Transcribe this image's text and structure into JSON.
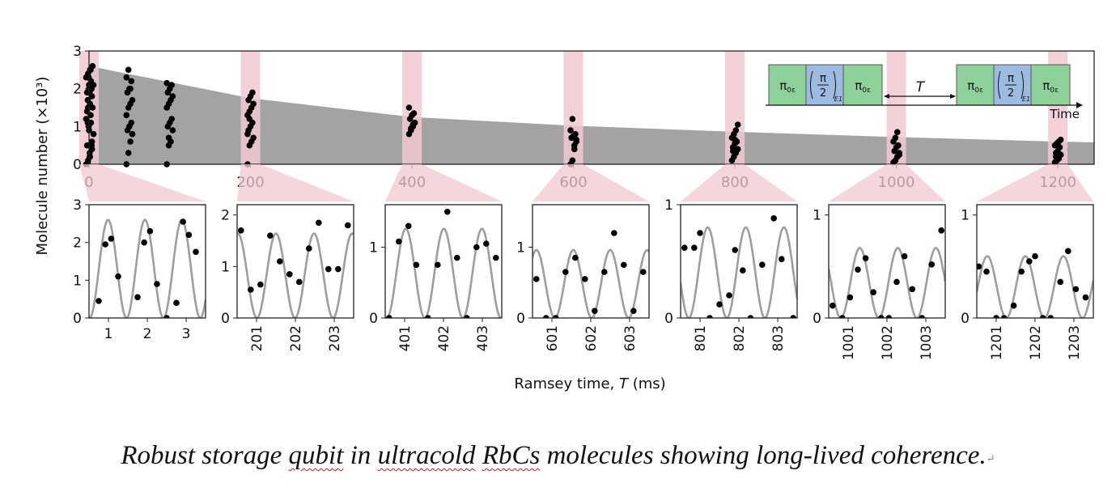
{
  "caption": {
    "parts": [
      "Robust storage ",
      "qubit",
      " in ",
      "ultracold",
      " ",
      "RbCs",
      " molecules showing long-lived coherence."
    ],
    "mark": "↵"
  },
  "colors": {
    "fill": "#a3a3a3",
    "highlight": "#f2c8d2",
    "fit_line": "#9e9e9e",
    "point": "#000000",
    "pulse_green": "#8fd19a",
    "pulse_blue": "#9dbbe0"
  },
  "chart_data": [
    {
      "type": "scatter",
      "panel": "overview",
      "ylabel": "Molecule number (×10³)",
      "xlim": [
        0,
        1245
      ],
      "ylim": [
        0,
        3
      ],
      "xticks": [
        0,
        200,
        400,
        600,
        800,
        1000,
        1200
      ],
      "yticks": [
        0,
        1,
        2,
        3
      ],
      "envelope": {
        "x": [
          0,
          200,
          400,
          600,
          800,
          1000,
          1200,
          1245
        ],
        "y": [
          2.6,
          1.75,
          1.25,
          1.02,
          0.86,
          0.72,
          0.6,
          0.58
        ]
      },
      "highlight_x": [
        0,
        200,
        400,
        600,
        800,
        1000,
        1200
      ],
      "points": [
        {
          "x": 0,
          "y": [
            0.0,
            0.1,
            0.2,
            0.4,
            0.5,
            0.9,
            1.1,
            1.2,
            1.5,
            1.6,
            1.8,
            1.9,
            2.0,
            2.2,
            2.3,
            2.4,
            2.5,
            0.6,
            1.4,
            2.1
          ]
        },
        {
          "x": 2,
          "y": [
            0.05,
            0.3,
            0.5,
            0.8,
            1.0,
            1.3,
            1.5,
            1.7,
            1.9,
            2.0,
            2.1,
            2.3,
            2.5,
            2.6,
            1.1,
            0.2
          ]
        },
        {
          "x": 50,
          "y": [
            0.0,
            0.3,
            0.6,
            0.8,
            0.9,
            1.0,
            1.1,
            1.3,
            1.5,
            1.6,
            1.7,
            1.9,
            2.0,
            2.2,
            2.3,
            2.5,
            2.0
          ]
        },
        {
          "x": 100,
          "y": [
            0.0,
            0.5,
            0.6,
            0.9,
            1.0,
            1.1,
            1.2,
            1.5,
            1.6,
            1.7,
            1.8,
            1.9,
            2.0,
            2.1,
            2.15,
            0.7
          ]
        },
        {
          "x": 200,
          "y": [
            0.0,
            0.5,
            0.6,
            0.7,
            0.9,
            1.0,
            1.1,
            1.3,
            1.4,
            1.5,
            1.6,
            1.7,
            1.8,
            1.9,
            0.8,
            1.2
          ]
        },
        {
          "x": 400,
          "y": [
            0.8,
            0.9,
            1.0,
            1.1,
            1.2,
            1.3,
            1.35,
            1.5,
            0.95,
            1.05
          ]
        },
        {
          "x": 600,
          "y": [
            0.0,
            0.1,
            0.4,
            0.6,
            0.7,
            0.75,
            0.8,
            0.9,
            1.2,
            0.5,
            0.65
          ]
        },
        {
          "x": 800,
          "y": [
            0.1,
            0.2,
            0.3,
            0.4,
            0.45,
            0.55,
            0.6,
            0.7,
            0.8,
            0.9,
            1.05,
            0.35,
            0.65
          ]
        },
        {
          "x": 1000,
          "y": [
            0.05,
            0.1,
            0.2,
            0.3,
            0.35,
            0.45,
            0.5,
            0.6,
            0.7,
            0.85,
            0.25
          ]
        },
        {
          "x": 1200,
          "y": [
            0.05,
            0.1,
            0.15,
            0.25,
            0.3,
            0.35,
            0.45,
            0.5,
            0.55,
            0.6,
            0.65,
            0.2
          ]
        }
      ],
      "inset": {
        "labels": [
          "π",
          "π",
          "2",
          "E1",
          "π",
          "T",
          "π",
          "π",
          "2",
          "E1",
          "π",
          "Time"
        ],
        "pulse_subscript": "0ε"
      }
    },
    {
      "type": "scatter",
      "panel": "zoom",
      "xlim": [
        0.5,
        3.5
      ],
      "ylim": [
        0,
        3
      ],
      "xticks": [
        1,
        2,
        3
      ],
      "yticks": [
        0,
        1,
        2,
        3
      ],
      "fit": {
        "offset": 1.3,
        "amplitude": 1.3,
        "period": 0.95,
        "peak_x": 0.99
      },
      "x": [
        0.75,
        0.92,
        1.07,
        1.25,
        1.75,
        1.92,
        2.07,
        2.25,
        2.5,
        2.75,
        2.92,
        3.07,
        3.25
      ],
      "y": [
        0.45,
        1.95,
        2.1,
        1.1,
        0.55,
        2.0,
        2.3,
        0.9,
        0.0,
        0.4,
        2.55,
        2.2,
        1.75
      ]
    },
    {
      "type": "scatter",
      "panel": "zoom",
      "xlim": [
        200.5,
        203.5
      ],
      "ylim": [
        0,
        2.2
      ],
      "xticks": [
        201,
        202,
        203
      ],
      "yticks": [
        0,
        1,
        2
      ],
      "fit": {
        "offset": 0.82,
        "amplitude": 0.82,
        "period": 0.98,
        "peak_x": 201.5
      },
      "x": [
        200.6,
        200.85,
        201.1,
        201.35,
        201.6,
        201.85,
        202.1,
        202.35,
        202.6,
        202.85,
        203.1,
        203.35
      ],
      "y": [
        1.7,
        0.55,
        0.65,
        1.6,
        1.1,
        0.85,
        0.7,
        1.35,
        1.85,
        0.95,
        0.95,
        1.8
      ]
    },
    {
      "type": "scatter",
      "panel": "zoom",
      "xlim": [
        400.5,
        403.5
      ],
      "ylim": [
        0,
        1.6
      ],
      "xticks": [
        401,
        402,
        403
      ],
      "yticks": [
        0,
        1
      ],
      "fit": {
        "offset": 0.63,
        "amplitude": 0.63,
        "period": 0.98,
        "peak_x": 401.03
      },
      "x": [
        400.6,
        400.85,
        401.1,
        401.3,
        401.6,
        401.85,
        402.1,
        402.35,
        402.6,
        402.85,
        403.1,
        403.35
      ],
      "y": [
        0.0,
        1.08,
        1.3,
        0.75,
        0.0,
        0.75,
        1.5,
        0.85,
        0.0,
        1.0,
        1.05,
        0.85
      ]
    },
    {
      "type": "scatter",
      "panel": "zoom",
      "xlim": [
        600.5,
        603.5
      ],
      "ylim": [
        0,
        1.6
      ],
      "xticks": [
        601,
        602,
        603
      ],
      "yticks": [
        0,
        1
      ],
      "fit": {
        "offset": 0.48,
        "amplitude": 0.48,
        "period": 0.95,
        "peak_x": 601.55
      },
      "x": [
        600.6,
        600.85,
        601.1,
        601.35,
        601.6,
        601.85,
        602.1,
        602.35,
        602.6,
        602.85,
        603.1,
        603.35
      ],
      "y": [
        0.55,
        0.0,
        0.0,
        0.65,
        0.85,
        0.55,
        0.1,
        0.65,
        1.2,
        0.75,
        0.1,
        0.65
      ]
    },
    {
      "type": "scatter",
      "panel": "zoom",
      "xlim": [
        800.5,
        803.5
      ],
      "ylim": [
        0,
        1.0
      ],
      "xticks": [
        801,
        802,
        803
      ],
      "yticks": [
        0,
        1
      ],
      "fit": {
        "offset": 0.4,
        "amplitude": 0.4,
        "period": 0.98,
        "peak_x": 801.2
      },
      "x": [
        800.6,
        800.85,
        801.0,
        801.25,
        801.5,
        801.75,
        801.9,
        802.1,
        802.3,
        802.6,
        802.9,
        803.1,
        803.4
      ],
      "y": [
        0.62,
        0.62,
        0.75,
        0.0,
        0.12,
        0.2,
        0.6,
        0.42,
        0.0,
        0.47,
        0.88,
        0.52,
        0.0
      ]
    },
    {
      "type": "scatter",
      "panel": "zoom",
      "xlim": [
        1000.5,
        1003.5
      ],
      "ylim": [
        0,
        1.1
      ],
      "xticks": [
        1001,
        1002,
        1003
      ],
      "yticks": [
        0,
        1
      ],
      "fit": {
        "offset": 0.34,
        "amplitude": 0.34,
        "period": 0.98,
        "peak_x": 1001.3
      },
      "x": [
        1000.6,
        1000.85,
        1001.05,
        1001.25,
        1001.45,
        1001.65,
        1001.85,
        1002.05,
        1002.25,
        1002.45,
        1002.65,
        1002.9,
        1003.15,
        1003.4
      ],
      "y": [
        0.12,
        0.0,
        0.2,
        0.47,
        0.58,
        0.25,
        0.0,
        0.0,
        0.35,
        0.6,
        0.28,
        0.0,
        0.52,
        0.85
      ]
    },
    {
      "type": "scatter",
      "panel": "zoom",
      "xlim": [
        1200.5,
        1203.5
      ],
      "ylim": [
        0,
        1.1
      ],
      "xticks": [
        1201,
        1202,
        1203
      ],
      "yticks": [
        0,
        1
      ],
      "fit": {
        "offset": 0.3,
        "amplitude": 0.3,
        "period": 0.98,
        "peak_x": 1201.75
      },
      "x": [
        1200.55,
        1200.75,
        1201.0,
        1201.2,
        1201.45,
        1201.65,
        1201.85,
        1202.0,
        1202.2,
        1202.4,
        1202.65,
        1202.85,
        1203.05,
        1203.3
      ],
      "y": [
        0.5,
        0.45,
        0.0,
        0.0,
        0.12,
        0.45,
        0.55,
        0.6,
        0.0,
        0.0,
        0.35,
        0.65,
        0.28,
        0.2
      ]
    }
  ],
  "shared_xlabel": "Ramsey time, ",
  "shared_xlabel_var": "T",
  "shared_xlabel_unit": " (ms)"
}
